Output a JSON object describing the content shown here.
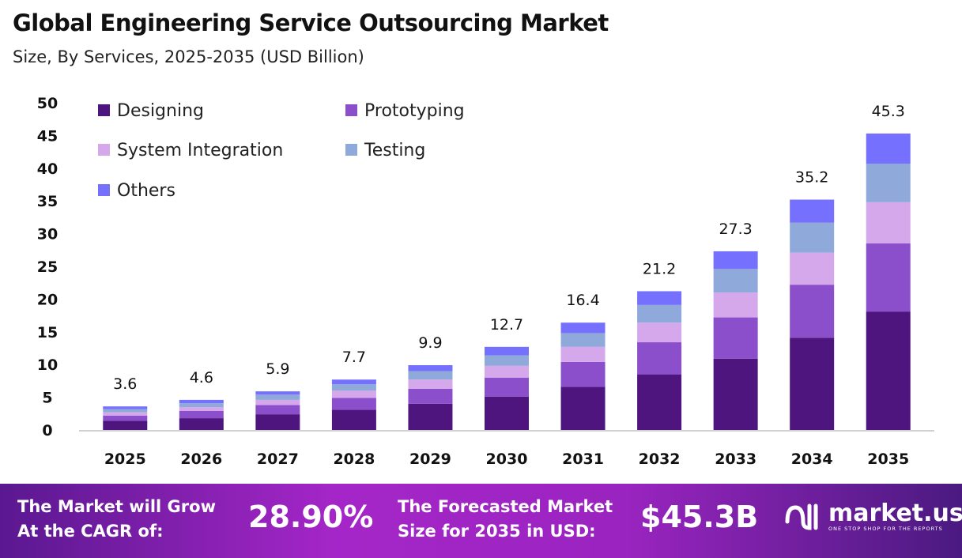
{
  "title": "Global Engineering Service Outsourcing Market",
  "subtitle": "Size, By Services, 2025-2035 (USD Billion)",
  "chart_data": {
    "type": "bar",
    "stacked": true,
    "categories": [
      "2025",
      "2026",
      "2027",
      "2028",
      "2029",
      "2030",
      "2031",
      "2032",
      "2033",
      "2034",
      "2035"
    ],
    "totals": [
      "3.6",
      "4.6",
      "5.9",
      "7.7",
      "9.9",
      "12.7",
      "16.4",
      "21.2",
      "27.3",
      "35.2",
      "45.3"
    ],
    "series": [
      {
        "name": "Designing",
        "color": "#4f157f",
        "values": [
          1.4,
          1.8,
          2.4,
          3.1,
          4.0,
          5.1,
          6.6,
          8.5,
          10.9,
          14.1,
          18.1
        ]
      },
      {
        "name": "Prototyping",
        "color": "#8b4fcc",
        "values": [
          0.8,
          1.1,
          1.4,
          1.8,
          2.3,
          2.9,
          3.8,
          4.9,
          6.3,
          8.1,
          10.4
        ]
      },
      {
        "name": "System Integration",
        "color": "#d4a8ea",
        "values": [
          0.5,
          0.6,
          0.8,
          1.1,
          1.4,
          1.8,
          2.3,
          3.0,
          3.8,
          4.9,
          6.3
        ]
      },
      {
        "name": "Testing",
        "color": "#8fa9db",
        "values": [
          0.5,
          0.6,
          0.8,
          1.0,
          1.3,
          1.6,
          2.1,
          2.7,
          3.6,
          4.6,
          5.9
        ]
      },
      {
        "name": "Others",
        "color": "#7570fe",
        "values": [
          0.4,
          0.5,
          0.5,
          0.7,
          0.9,
          1.3,
          1.6,
          2.1,
          2.7,
          3.5,
          4.6
        ]
      }
    ],
    "yticks": [
      "0",
      "5",
      "10",
      "15",
      "20",
      "25",
      "30",
      "35",
      "40",
      "45",
      "50"
    ],
    "ylim": [
      0,
      50
    ],
    "grid": false,
    "legend": "top-left"
  },
  "banner": {
    "cagr_label": "The Market will Grow At the CAGR of:",
    "cagr_value": "28.90%",
    "forecast_label": "The Forecasted Market Size for 2035 in USD:",
    "forecast_value": "$45.3B",
    "logo_name": "market.us",
    "logo_tagline": "ONE STOP SHOP FOR THE REPORTS"
  }
}
